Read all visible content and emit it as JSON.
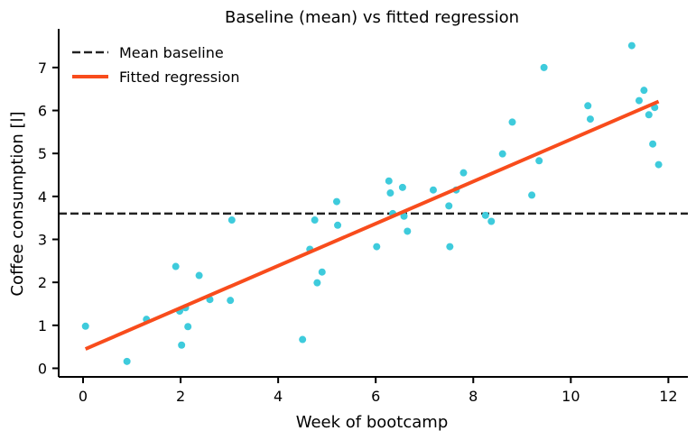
{
  "chart_data": {
    "type": "scatter",
    "title": "Baseline (mean) vs fitted regression",
    "xlabel": "Week of bootcamp",
    "ylabel": "Coffee consumption [l]",
    "xlim": [
      -0.5,
      12.4
    ],
    "ylim": [
      -0.2,
      7.9
    ],
    "xticks": [
      0,
      2,
      4,
      6,
      8,
      10,
      12
    ],
    "yticks": [
      0,
      1,
      2,
      3,
      4,
      5,
      6,
      7
    ],
    "grid": false,
    "legend_position": "top-left",
    "colors": {
      "points": "#3ecbdc",
      "regression": "#f84c1c",
      "baseline": "#222222"
    },
    "mean_baseline": {
      "name": "Mean baseline",
      "y": 3.6
    },
    "fitted_regression": {
      "name": "Fitted regression",
      "x": [
        0.05,
        11.8
      ],
      "y": [
        0.45,
        6.21
      ]
    },
    "points": {
      "x": [
        0.05,
        0.9,
        1.3,
        1.9,
        1.98,
        2.02,
        2.1,
        2.15,
        2.38,
        2.6,
        3.02,
        3.05,
        4.5,
        4.65,
        4.75,
        4.8,
        4.9,
        5.2,
        5.22,
        6.02,
        6.27,
        6.3,
        6.35,
        6.55,
        6.58,
        6.65,
        7.18,
        7.5,
        7.52,
        7.65,
        7.8,
        8.25,
        8.37,
        8.6,
        8.8,
        9.2,
        9.35,
        9.45,
        10.35,
        10.4,
        11.25,
        11.4,
        11.5,
        11.6,
        11.68,
        11.72,
        11.8
      ],
      "y": [
        0.98,
        0.16,
        1.14,
        2.37,
        1.33,
        0.54,
        1.41,
        0.97,
        2.16,
        1.6,
        1.58,
        3.45,
        0.67,
        2.77,
        3.45,
        1.99,
        2.24,
        3.88,
        3.33,
        2.83,
        4.36,
        4.08,
        3.6,
        4.21,
        3.54,
        3.19,
        4.15,
        3.78,
        2.83,
        4.15,
        4.55,
        3.56,
        3.42,
        4.99,
        5.73,
        4.03,
        4.83,
        7.0,
        6.11,
        5.8,
        7.51,
        6.23,
        6.47,
        5.9,
        5.22,
        6.07,
        4.74
      ]
    }
  }
}
